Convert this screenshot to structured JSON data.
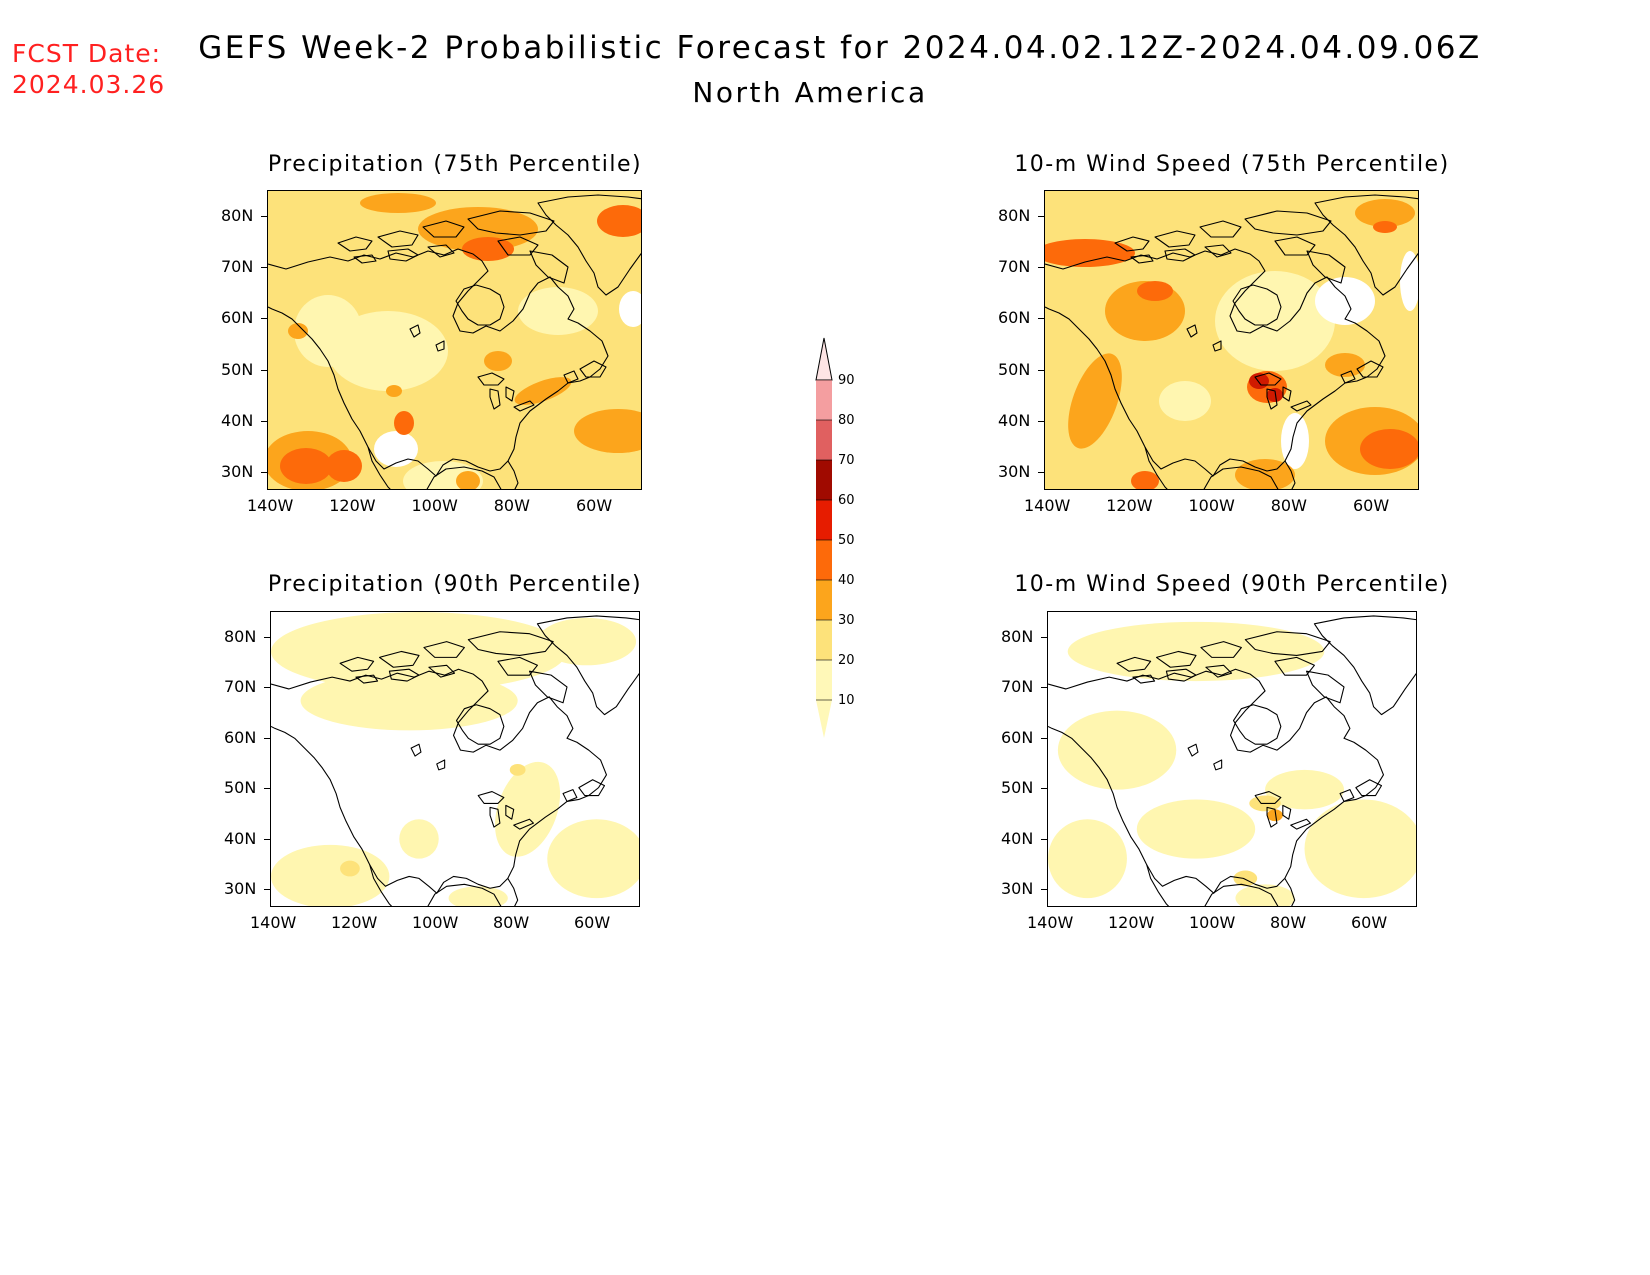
{
  "header": {
    "fcst_label": "FCST Date:",
    "fcst_date": "2024.03.26",
    "title": "GEFS Week-2 Probabilistic Forecast for 2024.04.02.12Z-2024.04.09.06Z",
    "region": "North America"
  },
  "panels": [
    {
      "title": "Precipitation (75th Percentile)",
      "level": "high",
      "variable": "precip"
    },
    {
      "title": "10-m Wind Speed (75th Percentile)",
      "level": "high",
      "variable": "wind"
    },
    {
      "title": "Precipitation (90th Percentile)",
      "level": "low",
      "variable": "precip"
    },
    {
      "title": "10-m Wind Speed (90th Percentile)",
      "level": "low",
      "variable": "wind"
    }
  ],
  "axes": {
    "lat_ticks": [
      "80N",
      "70N",
      "60N",
      "50N",
      "40N",
      "30N"
    ],
    "lon_ticks": [
      "140W",
      "120W",
      "100W",
      "80W",
      "60W"
    ]
  },
  "colorbar": {
    "levels": [
      "10",
      "20",
      "30",
      "40",
      "50",
      "60",
      "70",
      "80",
      "90"
    ],
    "colors": [
      "#fff8b8",
      "#fde27a",
      "#fca51c",
      "#fd6a0a",
      "#e61c00",
      "#a00a00",
      "#e06060",
      "#f49ea0",
      "#fde4e4"
    ]
  },
  "palette": {
    "white": "#ffffff",
    "pale": "#fff6b0",
    "light": "#fde27a",
    "orange": "#fca51c",
    "dark_orange": "#fd6a0a",
    "red": "#d01a00",
    "coast": "#000000",
    "fcst_text": "#ff2020"
  }
}
